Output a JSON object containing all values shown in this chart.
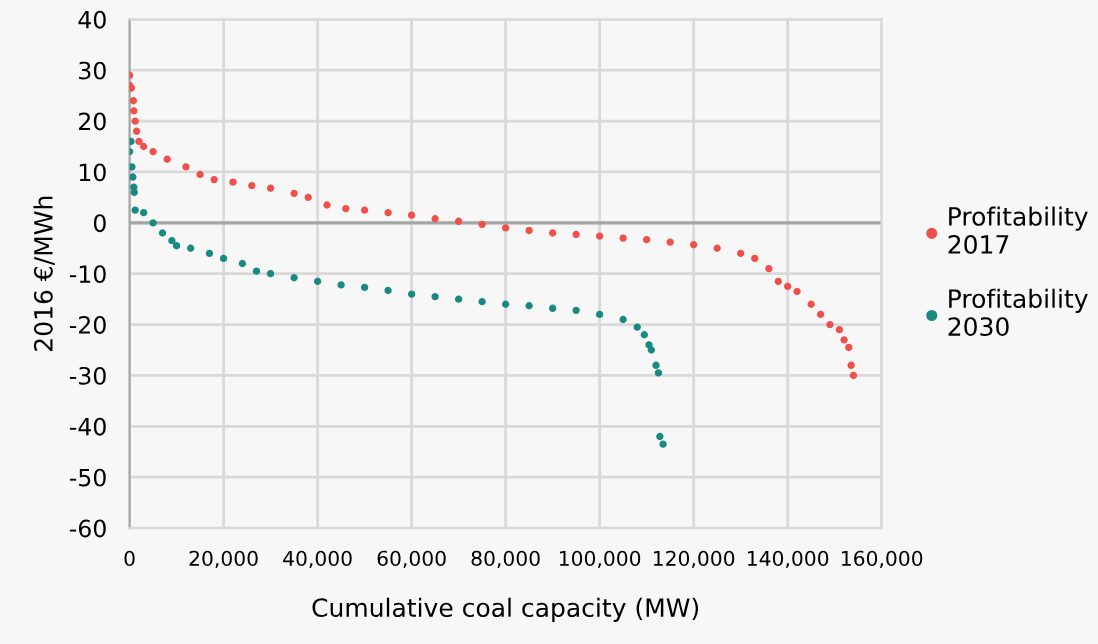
{
  "chart_data": {
    "type": "scatter",
    "xlabel": "Cumulative coal capacity (MW)",
    "ylabel": "2016 €/MWh",
    "xlim": [
      0,
      160000
    ],
    "xticks": [
      {
        "value": 0,
        "label": "0"
      },
      {
        "value": 20000,
        "label": "20,000"
      },
      {
        "value": 40000,
        "label": "40,000"
      },
      {
        "value": 60000,
        "label": "60,000"
      },
      {
        "value": 80000,
        "label": "80,000"
      },
      {
        "value": 100000,
        "label": "100,000"
      },
      {
        "value": 120000,
        "label": "120,000"
      },
      {
        "value": 140000,
        "label": "140,000"
      },
      {
        "value": 160000,
        "label": "160,000"
      }
    ],
    "ylim": [
      -60,
      40
    ],
    "yticks": [
      -60,
      -50,
      -40,
      -30,
      -20,
      -10,
      0,
      10,
      20,
      30,
      40
    ],
    "grid": true,
    "legend": "right",
    "marker": "circle",
    "ref_lines": [
      {
        "axis": "y",
        "value": 0,
        "color": "#a6a6a6"
      }
    ],
    "series": [
      {
        "name": "Profitability\n2017",
        "color": "#f0504a",
        "x": [
          0,
          0,
          400,
          800,
          900,
          1200,
          1500,
          2000,
          3000,
          5000,
          8000,
          12000,
          15000,
          18000,
          22000,
          26000,
          30000,
          35000,
          38000,
          42000,
          46000,
          50000,
          55000,
          60000,
          65000,
          70000,
          75000,
          80000,
          85000,
          90000,
          95000,
          100000,
          105000,
          110000,
          115000,
          120000,
          125000,
          130000,
          133000,
          136000,
          138000,
          140000,
          142000,
          145000,
          147000,
          149000,
          151000,
          152000,
          153000,
          153500,
          154000
        ],
        "values": [
          29,
          27,
          26.5,
          24,
          22,
          20,
          18,
          16,
          15,
          14,
          12.5,
          11,
          9.5,
          8.5,
          8,
          7.3,
          6.8,
          5.8,
          5,
          3.5,
          2.8,
          2.5,
          2,
          1.5,
          0.8,
          0.3,
          -0.3,
          -1,
          -1.5,
          -2,
          -2.3,
          -2.6,
          -3,
          -3.3,
          -3.8,
          -4.3,
          -5,
          -6,
          -7,
          -9,
          -11.5,
          -12.5,
          -13.5,
          -16,
          -18,
          -20,
          -21,
          -23,
          -24.5,
          -28,
          -30
        ]
      },
      {
        "name": "Profitability\n2030",
        "color": "#1a8a80",
        "x": [
          0,
          300,
          500,
          700,
          900,
          1000,
          1200,
          3000,
          5000,
          7000,
          9000,
          10000,
          13000,
          17000,
          20000,
          24000,
          27000,
          30000,
          35000,
          40000,
          45000,
          50000,
          55000,
          60000,
          65000,
          70000,
          75000,
          80000,
          85000,
          90000,
          95000,
          100000,
          105000,
          108000,
          109500,
          110500,
          111000,
          112000,
          112500,
          112800,
          113500
        ],
        "values": [
          14,
          16,
          11,
          9,
          7,
          6,
          2.5,
          2,
          0,
          -2,
          -3.5,
          -4.5,
          -5,
          -6,
          -7,
          -8,
          -9.5,
          -10,
          -10.8,
          -11.5,
          -12.2,
          -12.7,
          -13.3,
          -14,
          -14.5,
          -15,
          -15.5,
          -16,
          -16.3,
          -16.8,
          -17.2,
          -18,
          -19,
          -20.5,
          -22,
          -24,
          -25,
          -28,
          -29.5,
          -42,
          -43.5
        ]
      }
    ]
  }
}
